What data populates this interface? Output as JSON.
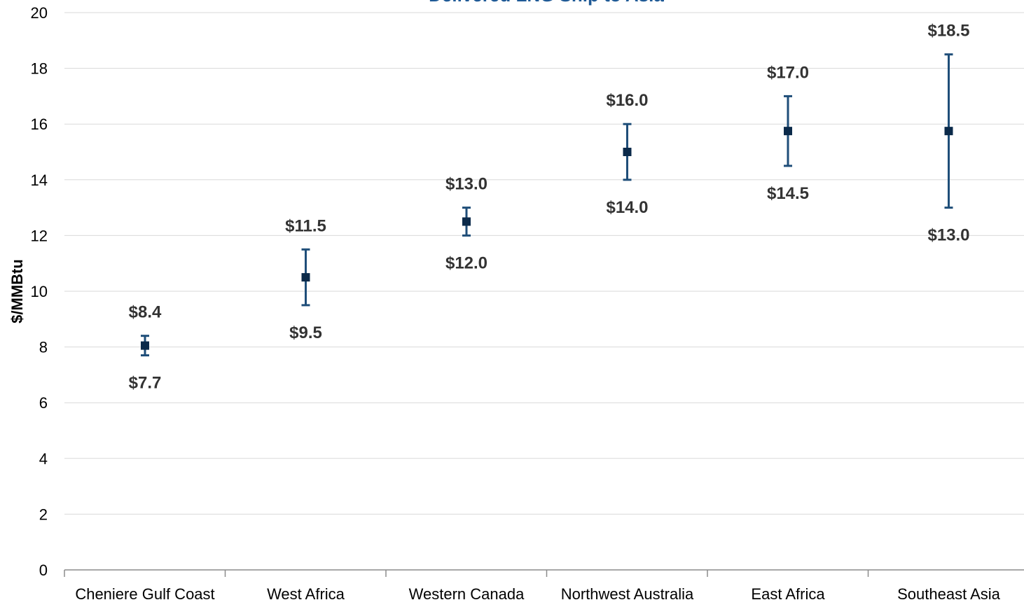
{
  "chart_data": {
    "type": "scatter",
    "title": "Delivered LNG Ship to Asia",
    "xlabel": "",
    "ylabel": "$/MMBtu",
    "ylim": [
      0,
      20
    ],
    "yticks": [
      0,
      2,
      4,
      6,
      8,
      10,
      12,
      14,
      16,
      18,
      20
    ],
    "grid": true,
    "categories": [
      "Cheniere Gulf Coast",
      "West Africa",
      "Western Canada",
      "Northwest Australia",
      "East Africa",
      "Southeast Asia"
    ],
    "points": [
      {
        "category": "Cheniere Gulf Coast",
        "low": 7.7,
        "high": 8.4,
        "marker": 8.05,
        "low_label": "$7.7",
        "high_label": "$8.4"
      },
      {
        "category": "West Africa",
        "low": 9.5,
        "high": 11.5,
        "marker": 10.5,
        "low_label": "$9.5",
        "high_label": "$11.5"
      },
      {
        "category": "Western Canada",
        "low": 12.0,
        "high": 13.0,
        "marker": 12.5,
        "low_label": "$12.0",
        "high_label": "$13.0"
      },
      {
        "category": "Northwest Australia",
        "low": 14.0,
        "high": 16.0,
        "marker": 15.0,
        "low_label": "$14.0",
        "high_label": "$16.0"
      },
      {
        "category": "East Africa",
        "low": 14.5,
        "high": 17.0,
        "marker": 15.75,
        "low_label": "$14.5",
        "high_label": "$17.0"
      },
      {
        "category": "Southeast Asia",
        "low": 13.0,
        "high": 18.5,
        "marker": 15.75,
        "low_label": "$13.0",
        "high_label": "$18.5"
      }
    ],
    "colors": {
      "title": "#1f5a96",
      "error_bar": "#1f4e79",
      "marker": "#0b2a4a",
      "gridline": "#d9d9d9",
      "axis": "#8c8c8c",
      "label": "#333333"
    }
  }
}
